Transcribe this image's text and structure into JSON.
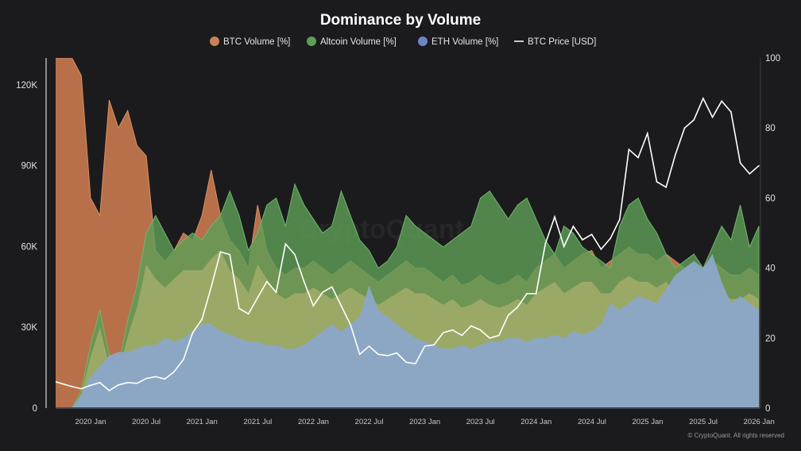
{
  "chart_data": {
    "type": "area",
    "title": "Dominance by Volume",
    "legend": [
      {
        "name": "BTC Volume [%]",
        "color": "#c98257",
        "marker": "dot"
      },
      {
        "name": "Altcoin Volume [%]",
        "color": "#5e9e57",
        "marker": "dot"
      },
      {
        "name": "ETH Volume [%]",
        "color": "#6b86c4",
        "marker": "dot"
      },
      {
        "name": "BTC Price [USD]",
        "color": "#ffffff",
        "marker": "line"
      }
    ],
    "legend_position": "top",
    "x_tick_labels": [
      "2020 Jan",
      "2020 Jul",
      "2021 Jan",
      "2021 Jul",
      "2022 Jan",
      "2022 Jul",
      "2023 Jan",
      "2023 Jul",
      "2024 Jan",
      "2024 Jul",
      "2025 Jan",
      "2025 Jul",
      "2026 Jan"
    ],
    "y_left": {
      "tick_labels": [
        "0",
        "30K",
        "60K",
        "90K",
        "120K"
      ],
      "ticks": [
        0,
        30000,
        60000,
        90000,
        120000
      ],
      "range": [
        0,
        130000
      ]
    },
    "y_right": {
      "tick_labels": [
        "0",
        "20",
        "40",
        "60",
        "80",
        "100"
      ],
      "ticks": [
        0,
        20,
        40,
        60,
        80,
        100
      ],
      "range": [
        0,
        100
      ]
    },
    "grid": false,
    "x": [
      "2019-09",
      "2019-10",
      "2019-11",
      "2019-12",
      "2020-01",
      "2020-02",
      "2020-03",
      "2020-04",
      "2020-05",
      "2020-06",
      "2020-07",
      "2020-08",
      "2020-09",
      "2020-10",
      "2020-11",
      "2020-12",
      "2021-01",
      "2021-02",
      "2021-03",
      "2021-04",
      "2021-05",
      "2021-06",
      "2021-07",
      "2021-08",
      "2021-09",
      "2021-10",
      "2021-11",
      "2021-12",
      "2022-01",
      "2022-02",
      "2022-03",
      "2022-04",
      "2022-05",
      "2022-06",
      "2022-07",
      "2022-08",
      "2022-09",
      "2022-10",
      "2022-11",
      "2022-12",
      "2023-01",
      "2023-02",
      "2023-03",
      "2023-04",
      "2023-05",
      "2023-06",
      "2023-07",
      "2023-08",
      "2023-09",
      "2023-10",
      "2023-11",
      "2023-12",
      "2024-01",
      "2024-02",
      "2024-03",
      "2024-04",
      "2024-05",
      "2024-06",
      "2024-07",
      "2024-08",
      "2024-09",
      "2024-10",
      "2024-11",
      "2024-12",
      "2025-01",
      "2025-02",
      "2025-03",
      "2025-04",
      "2025-05",
      "2025-06",
      "2025-07",
      "2025-08",
      "2025-09",
      "2025-10",
      "2025-11",
      "2025-12",
      "2026-01"
    ],
    "series": [
      {
        "name": "BTC Volume [%]",
        "axis": "right",
        "color": "#b8704a",
        "values": [
          100,
          100,
          100,
          95,
          60,
          55,
          88,
          80,
          85,
          75,
          72,
          45,
          42,
          45,
          50,
          48,
          55,
          68,
          55,
          48,
          45,
          40,
          58,
          45,
          40,
          38,
          40,
          40,
          42,
          40,
          38,
          40,
          42,
          40,
          38,
          36,
          38,
          40,
          42,
          40,
          40,
          38,
          36,
          38,
          35,
          36,
          38,
          36,
          35,
          36,
          38,
          36,
          40,
          42,
          44,
          40,
          42,
          44,
          45,
          40,
          42,
          44,
          46,
          44,
          44,
          42,
          44,
          42,
          40,
          38,
          40,
          42,
          40,
          38,
          38,
          40,
          38
        ]
      },
      {
        "name": "Altcoin Volume [%]",
        "axis": "right",
        "color": "#5e9e57",
        "values": [
          0,
          0,
          0,
          5,
          18,
          28,
          15,
          12,
          25,
          35,
          50,
          55,
          50,
          45,
          48,
          50,
          48,
          52,
          55,
          62,
          55,
          45,
          50,
          58,
          60,
          52,
          64,
          58,
          54,
          50,
          52,
          62,
          55,
          48,
          45,
          40,
          42,
          46,
          55,
          52,
          50,
          48,
          46,
          48,
          50,
          52,
          60,
          62,
          58,
          54,
          58,
          60,
          54,
          48,
          44,
          52,
          50,
          46,
          44,
          42,
          40,
          52,
          58,
          60,
          54,
          50,
          44,
          40,
          42,
          44,
          40,
          46,
          52,
          48,
          58,
          46,
          52
        ]
      },
      {
        "name": "ETH Volume [%]",
        "axis": "right",
        "color": "#8ba7c8",
        "values": [
          0,
          0,
          0,
          4,
          9,
          12,
          15,
          16,
          16,
          17,
          18,
          18,
          20,
          19,
          20,
          22,
          24,
          24,
          22,
          21,
          20,
          19,
          19,
          18,
          18,
          17,
          17,
          18,
          20,
          22,
          24,
          22,
          24,
          26,
          35,
          28,
          26,
          24,
          22,
          20,
          19,
          18,
          17,
          17,
          18,
          17,
          18,
          19,
          19,
          20,
          20,
          19,
          20,
          20,
          21,
          20,
          22,
          21,
          22,
          24,
          30,
          28,
          30,
          32,
          31,
          30,
          34,
          38,
          40,
          42,
          40,
          44,
          36,
          30,
          32,
          30,
          28
        ]
      },
      {
        "name": "BTC Price [USD]",
        "axis": "left",
        "color": "#ffffff",
        "values": [
          10000,
          9000,
          8000,
          7200,
          8500,
          9500,
          6500,
          8600,
          9500,
          9200,
          11000,
          11700,
          10800,
          13500,
          18000,
          28000,
          33000,
          45000,
          58000,
          57000,
          37000,
          35000,
          41000,
          47000,
          43000,
          61000,
          57000,
          47000,
          38000,
          43000,
          45000,
          38000,
          31000,
          20000,
          23000,
          20000,
          19500,
          20500,
          17000,
          16500,
          23000,
          23500,
          28000,
          29000,
          27000,
          30500,
          29000,
          26000,
          27000,
          34500,
          37500,
          42500,
          42500,
          61000,
          71000,
          60000,
          67500,
          62500,
          64500,
          59000,
          63000,
          70000,
          96000,
          93000,
          102000,
          84000,
          82000,
          94000,
          104000,
          107000,
          115000,
          108000,
          114000,
          110000,
          91000,
          87000,
          90000
        ]
      }
    ]
  },
  "watermark": "CryptoQuant",
  "copyright": "© CryptoQuant. All rights reserved"
}
